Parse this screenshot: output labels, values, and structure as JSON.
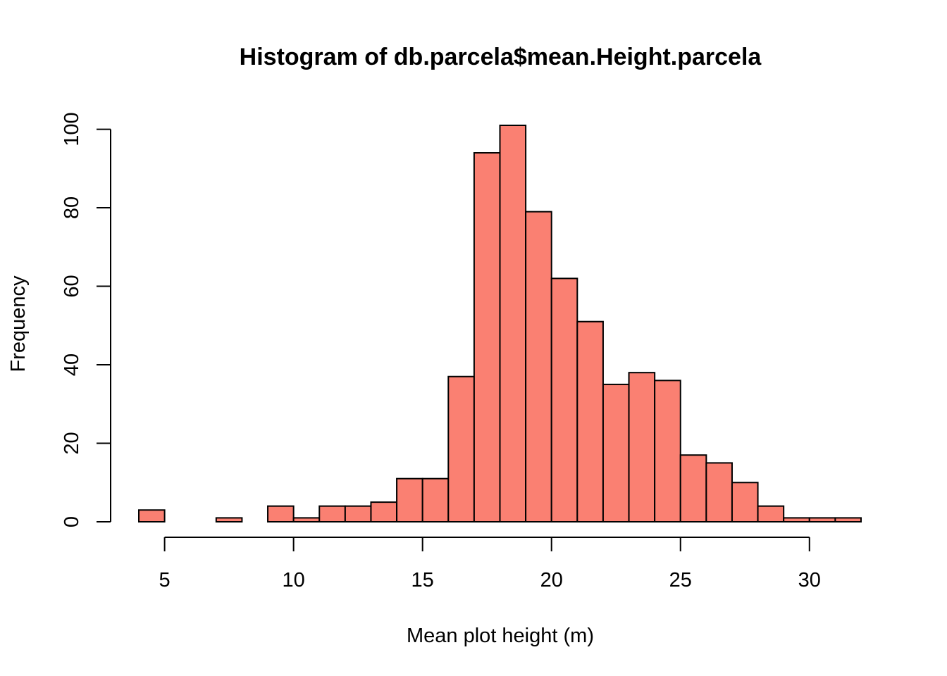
{
  "chart_data": {
    "type": "bar",
    "title": "Histogram of db.parcela$mean.Height.parcela",
    "xlabel": "Mean plot height (m)",
    "ylabel": "Frequency",
    "bin_width": 1,
    "bins": [
      {
        "start": 4,
        "end": 5,
        "count": 3
      },
      {
        "start": 5,
        "end": 6,
        "count": 0
      },
      {
        "start": 6,
        "end": 7,
        "count": 0
      },
      {
        "start": 7,
        "end": 8,
        "count": 1
      },
      {
        "start": 8,
        "end": 9,
        "count": 0
      },
      {
        "start": 9,
        "end": 10,
        "count": 4
      },
      {
        "start": 10,
        "end": 11,
        "count": 1
      },
      {
        "start": 11,
        "end": 12,
        "count": 4
      },
      {
        "start": 12,
        "end": 13,
        "count": 4
      },
      {
        "start": 13,
        "end": 14,
        "count": 5
      },
      {
        "start": 14,
        "end": 15,
        "count": 11
      },
      {
        "start": 15,
        "end": 16,
        "count": 11
      },
      {
        "start": 16,
        "end": 17,
        "count": 37
      },
      {
        "start": 17,
        "end": 18,
        "count": 94
      },
      {
        "start": 18,
        "end": 19,
        "count": 101
      },
      {
        "start": 19,
        "end": 20,
        "count": 79
      },
      {
        "start": 20,
        "end": 21,
        "count": 62
      },
      {
        "start": 21,
        "end": 22,
        "count": 51
      },
      {
        "start": 22,
        "end": 23,
        "count": 35
      },
      {
        "start": 23,
        "end": 24,
        "count": 38
      },
      {
        "start": 24,
        "end": 25,
        "count": 36
      },
      {
        "start": 25,
        "end": 26,
        "count": 17
      },
      {
        "start": 26,
        "end": 27,
        "count": 15
      },
      {
        "start": 27,
        "end": 28,
        "count": 10
      },
      {
        "start": 28,
        "end": 29,
        "count": 4
      },
      {
        "start": 29,
        "end": 30,
        "count": 1
      },
      {
        "start": 30,
        "end": 31,
        "count": 1
      },
      {
        "start": 31,
        "end": 32,
        "count": 1
      }
    ],
    "xlim": [
      4,
      32
    ],
    "ylim": [
      0,
      101
    ],
    "x_ticks": [
      5,
      10,
      15,
      20,
      25,
      30
    ],
    "y_ticks": [
      0,
      20,
      40,
      60,
      80,
      100
    ],
    "bar_color": "#FA8072",
    "grid": false,
    "legend": "none"
  }
}
